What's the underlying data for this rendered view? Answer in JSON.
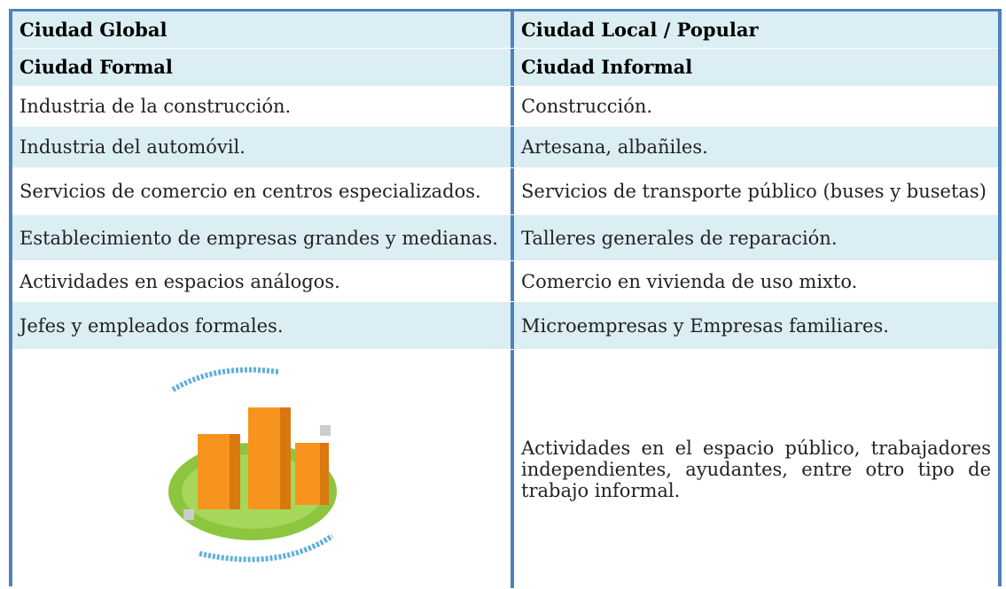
{
  "table": {
    "header": [
      [
        "Ciudad Global",
        "Ciudad Local / Popular"
      ],
      [
        "Ciudad Formal",
        "Ciudad Informal"
      ]
    ],
    "rows": [
      [
        "Industria de la construcción.",
        "Construcción."
      ],
      [
        "Industria del automóvil.",
        "Artesana, albañiles."
      ],
      [
        "Servicios de comercio en centros especializados.",
        "Servicios de transporte público (buses y busetas)"
      ],
      [
        "Establecimiento de empresas grandes y medianas.",
        "Talleres generales de reparación."
      ],
      [
        "Actividades en espacios análogos.",
        "Comercio en vivienda de uso mixto."
      ],
      [
        "Jefes y empleados formales.",
        "Microempresas y Empresas familiares."
      ],
      [
        null,
        "Actividades en el espacio público, trabajadores independientes, ayudantes, entre otro tipo de trabajo informal."
      ]
    ]
  }
}
